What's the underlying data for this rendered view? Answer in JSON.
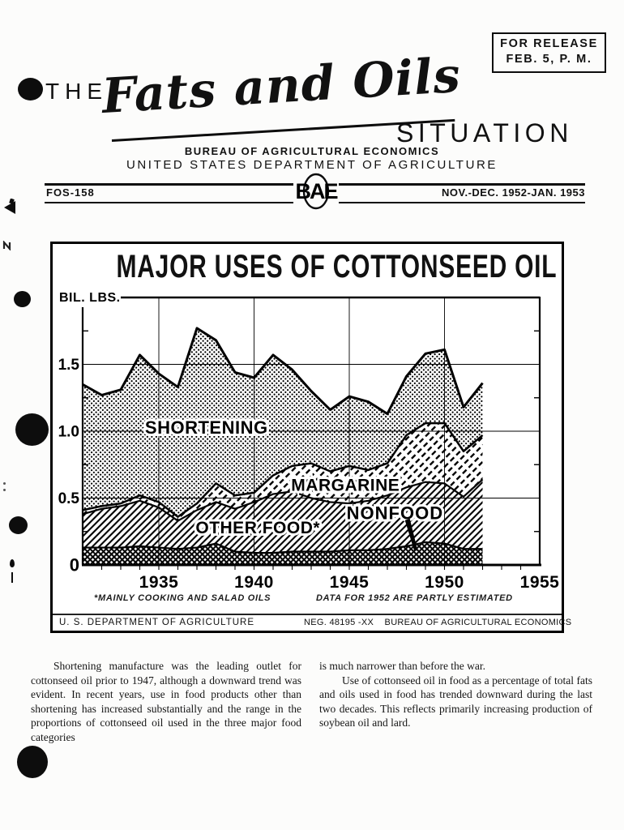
{
  "release_box": {
    "line1": "FOR RELEASE",
    "line2": "FEB. 5, P. M."
  },
  "masthead": {
    "the": "THE",
    "script": "Fats and Oils",
    "situation": "SITUATION",
    "bureau": "BUREAU OF AGRICULTURAL ECONOMICS",
    "department": "UNITED STATES DEPARTMENT OF AGRICULTURE"
  },
  "issue_bar": {
    "left": "FOS-158",
    "monogram": "BAE",
    "right": "NOV.-DEC. 1952-JAN. 1953"
  },
  "chart_card": {
    "title": "MAJOR USES OF COTTONSEED OIL",
    "footnote_left": "*MAINLY COOKING AND SALAD OILS",
    "footnote_right": "DATA FOR 1952 ARE PARTLY ESTIMATED",
    "footer_left": "U. S. DEPARTMENT OF AGRICULTURE",
    "footer_right": "NEG. 48195 -XX    BUREAU OF AGRICULTURAL ECONOMICS"
  },
  "chart_data": {
    "type": "area",
    "stacked": true,
    "title": "MAJOR USES OF COTTONSEED OIL",
    "ylabel": "BIL. LBS.",
    "xlim": [
      1931,
      1955
    ],
    "ylim": [
      0,
      2.0
    ],
    "grid": true,
    "x": [
      1931,
      1932,
      1933,
      1934,
      1935,
      1936,
      1937,
      1938,
      1939,
      1940,
      1941,
      1942,
      1943,
      1944,
      1945,
      1946,
      1947,
      1948,
      1949,
      1950,
      1951,
      1952
    ],
    "series": [
      {
        "name": "NONFOOD",
        "pattern": "crosshatch",
        "values": [
          0.13,
          0.13,
          0.13,
          0.14,
          0.13,
          0.12,
          0.13,
          0.16,
          0.1,
          0.09,
          0.09,
          0.1,
          0.1,
          0.1,
          0.11,
          0.11,
          0.12,
          0.14,
          0.17,
          0.16,
          0.12,
          0.12
        ]
      },
      {
        "name": "OTHER FOOD*",
        "pattern": "diagonal",
        "values": [
          0.25,
          0.29,
          0.31,
          0.34,
          0.3,
          0.21,
          0.28,
          0.31,
          0.32,
          0.38,
          0.44,
          0.45,
          0.4,
          0.37,
          0.35,
          0.37,
          0.4,
          0.44,
          0.45,
          0.45,
          0.39,
          0.52
        ]
      },
      {
        "name": "MARGARINE",
        "pattern": "diagonal-dash",
        "values": [
          0.03,
          0.02,
          0.02,
          0.04,
          0.04,
          0.03,
          0.05,
          0.14,
          0.1,
          0.07,
          0.14,
          0.19,
          0.26,
          0.23,
          0.28,
          0.23,
          0.24,
          0.39,
          0.44,
          0.45,
          0.34,
          0.33
        ]
      },
      {
        "name": "SHORTENING",
        "pattern": "halftone-dots",
        "values": [
          0.94,
          0.83,
          0.85,
          1.05,
          0.96,
          0.97,
          1.31,
          1.07,
          0.92,
          0.86,
          0.9,
          0.72,
          0.54,
          0.46,
          0.52,
          0.51,
          0.37,
          0.44,
          0.52,
          0.55,
          0.33,
          0.39
        ]
      }
    ],
    "xticks": [
      {
        "v": 1935,
        "label": "1935"
      },
      {
        "v": 1940,
        "label": "1940"
      },
      {
        "v": 1945,
        "label": "1945"
      },
      {
        "v": 1950,
        "label": "1950"
      },
      {
        "v": 1955,
        "label": "1955"
      }
    ],
    "yticks": [
      {
        "v": 0,
        "label": "0"
      },
      {
        "v": 0.5,
        "label": "0.5"
      },
      {
        "v": 1.0,
        "label": "1.0"
      },
      {
        "v": 1.5,
        "label": "1.5"
      }
    ],
    "annotations": [
      {
        "text": "SHORTENING",
        "year": 1937.5,
        "value": 1.03,
        "size": 22,
        "ls": 0.5
      },
      {
        "text": "MARGARINE",
        "year": 1944.8,
        "value": 0.6,
        "size": 21,
        "ls": 0.5
      },
      {
        "text": "OTHER FOOD*",
        "year": 1940.2,
        "value": 0.28,
        "size": 21,
        "ls": 0.5
      },
      {
        "text": "NONFOOD",
        "year": 1947.4,
        "value": 0.39,
        "size": 22,
        "ls": 1
      }
    ],
    "callout": {
      "from": {
        "year": 1948.05,
        "value": 0.34
      },
      "to": {
        "year": 1948.5,
        "value": 0.11
      }
    }
  },
  "body": {
    "col1_p1": "Shortening manufacture was the leading outlet for cottonseed oil prior to 1947, although a downward trend was evident.  In recent years, use in food products other than shortening has increased substantially and the range in the proportions of cottonseed oil used in the three major food categories",
    "col2_p1": "is much narrower than before the war.",
    "col2_p2": "Use of cottonseed oil in food as a percentage of total fats and oils used in food has trended downward during the last two decades.  This reflects primarily increasing production of soybean oil and lard."
  }
}
